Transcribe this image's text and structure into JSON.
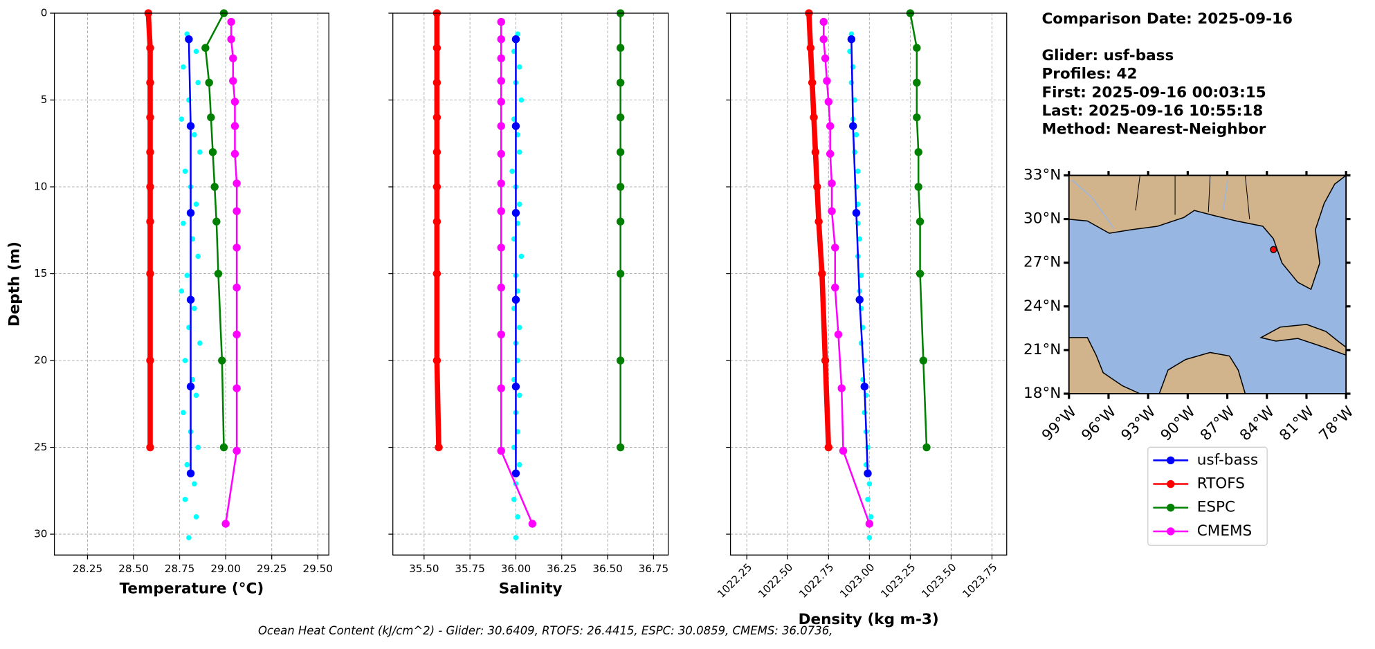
{
  "chart_data": [
    {
      "type": "profile",
      "xlabel": "Temperature (°C)",
      "ylabel": "Depth (m)",
      "xlim": [
        28.07,
        29.56
      ],
      "ylim": [
        31.2,
        0
      ],
      "xticks": [
        28.25,
        {
          "value": 28.5,
          "label": "28.50"
        },
        28.75,
        {
          "value": 29,
          "label": "29.00"
        },
        29.25,
        {
          "value": 29.5,
          "label": "29.50"
        }
      ],
      "yticks": [
        0,
        5,
        10,
        15,
        20,
        25,
        30
      ],
      "grid": true,
      "profile_points": {
        "color": "#00ffff",
        "depths": [
          1.2,
          2.2,
          3.1,
          4.0,
          5.0,
          6.1,
          7.0,
          8.0,
          9.1,
          10.0,
          11.0,
          12.1,
          13.0,
          14.0,
          15.1,
          16.0,
          17.0,
          18.1,
          19.0,
          20.0,
          21.1,
          22.0,
          23.0,
          24.1,
          25.0,
          26.0,
          27.1,
          28.0,
          29.0,
          30.2
        ],
        "values": [
          28.79,
          28.84,
          28.77,
          28.85,
          28.8,
          28.76,
          28.83,
          28.86,
          28.78,
          28.81,
          28.84,
          28.77,
          28.82,
          28.85,
          28.79,
          28.76,
          28.83,
          28.8,
          28.86,
          28.78,
          28.82,
          28.84,
          28.77,
          28.81,
          28.85,
          28.79,
          28.83,
          28.78,
          28.84,
          28.8
        ]
      },
      "series": [
        {
          "name": "usf-bass",
          "color": "#0000ff",
          "depths": [
            1.5,
            6.5,
            11.5,
            16.5,
            21.5,
            26.5
          ],
          "values": [
            28.8,
            28.81,
            28.81,
            28.81,
            28.81,
            28.81
          ]
        },
        {
          "name": "RTOFS",
          "color": "#ff0000",
          "depths": [
            0,
            2,
            4,
            6,
            8,
            10,
            12,
            15,
            20,
            25
          ],
          "values": [
            28.58,
            28.59,
            28.59,
            28.59,
            28.59,
            28.59,
            28.59,
            28.59,
            28.59,
            28.59
          ]
        },
        {
          "name": "ESPC",
          "color": "#008000",
          "depths": [
            0,
            2,
            4,
            6,
            8,
            10,
            12,
            15,
            20,
            25
          ],
          "values": [
            28.99,
            28.89,
            28.91,
            28.92,
            28.93,
            28.94,
            28.95,
            28.96,
            28.98,
            28.99
          ]
        },
        {
          "name": "CMEMS",
          "color": "#ff00ff",
          "depths": [
            0.5,
            1.5,
            2.6,
            3.9,
            5.1,
            6.5,
            8.1,
            9.8,
            11.4,
            13.5,
            15.8,
            18.5,
            21.6,
            25.2,
            29.4
          ],
          "values": [
            29.03,
            29.03,
            29.04,
            29.04,
            29.05,
            29.05,
            29.05,
            29.06,
            29.06,
            29.06,
            29.06,
            29.06,
            29.06,
            29.06,
            29.0
          ]
        }
      ]
    },
    {
      "type": "profile",
      "xlabel": "Salinity",
      "xlim": [
        35.33,
        36.83
      ],
      "ylim": [
        31.2,
        0
      ],
      "xticks": [
        {
          "value": 35.5,
          "label": "35.50"
        },
        35.75,
        {
          "value": 36,
          "label": "36.00"
        },
        36.25,
        {
          "value": 36.5,
          "label": "36.50"
        },
        36.75
      ],
      "yticks": [
        0,
        5,
        10,
        15,
        20,
        25,
        30
      ],
      "grid": true,
      "profile_points": {
        "color": "#00ffff",
        "depths": [
          1.2,
          2.2,
          3.1,
          4.0,
          5.0,
          6.1,
          7.0,
          8.0,
          9.1,
          10.0,
          11.0,
          12.1,
          13.0,
          14.0,
          15.1,
          16.0,
          17.0,
          18.1,
          19.0,
          20.0,
          21.1,
          22.0,
          23.0,
          24.1,
          25.0,
          26.0,
          27.1,
          28.0,
          29.0,
          30.2
        ],
        "values": [
          36.01,
          35.99,
          36.02,
          36.0,
          36.03,
          35.99,
          36.01,
          36.02,
          35.98,
          36.0,
          36.02,
          36.01,
          35.99,
          36.03,
          36.0,
          36.01,
          35.99,
          36.02,
          36.0,
          36.01,
          35.99,
          36.02,
          36.0,
          36.01,
          35.99,
          36.02,
          36.0,
          35.99,
          36.01,
          36.0
        ]
      },
      "series": [
        {
          "name": "usf-bass",
          "color": "#0000ff",
          "depths": [
            1.5,
            6.5,
            11.5,
            16.5,
            21.5,
            26.5
          ],
          "values": [
            36.0,
            36.0,
            36.0,
            36.0,
            36.0,
            36.0
          ]
        },
        {
          "name": "RTOFS",
          "color": "#ff0000",
          "depths": [
            0,
            2,
            4,
            6,
            8,
            10,
            12,
            15,
            20,
            25
          ],
          "values": [
            35.57,
            35.57,
            35.57,
            35.57,
            35.57,
            35.57,
            35.57,
            35.57,
            35.57,
            35.58
          ]
        },
        {
          "name": "ESPC",
          "color": "#008000",
          "depths": [
            0,
            2,
            4,
            6,
            8,
            10,
            12,
            15,
            20,
            25
          ],
          "values": [
            36.57,
            36.57,
            36.57,
            36.57,
            36.57,
            36.57,
            36.57,
            36.57,
            36.57,
            36.57
          ]
        },
        {
          "name": "CMEMS",
          "color": "#ff00ff",
          "depths": [
            0.5,
            1.5,
            2.6,
            3.9,
            5.1,
            6.5,
            8.1,
            9.8,
            11.4,
            13.5,
            15.8,
            18.5,
            21.6,
            25.2,
            29.4
          ],
          "values": [
            35.92,
            35.92,
            35.92,
            35.92,
            35.92,
            35.92,
            35.92,
            35.92,
            35.92,
            35.92,
            35.92,
            35.92,
            35.92,
            35.92,
            36.09
          ]
        }
      ]
    },
    {
      "type": "profile",
      "xlabel": "Density (kg m-3)",
      "xlim": [
        1022.15,
        1023.84
      ],
      "ylim": [
        31.2,
        0
      ],
      "xticks": [
        1022.25,
        {
          "value": 1022.5,
          "label": "1022.50"
        },
        1022.75,
        {
          "value": 1023,
          "label": "1023.00"
        },
        1023.25,
        {
          "value": 1023.5,
          "label": "1023.50"
        },
        1023.75
      ],
      "yticks": [
        0,
        5,
        10,
        15,
        20,
        25,
        30
      ],
      "grid": true,
      "rotate_xticks": true,
      "profile_points": {
        "color": "#00ffff",
        "depths": [
          1.2,
          2.2,
          3.1,
          4.0,
          5.0,
          6.1,
          7.0,
          8.0,
          9.1,
          10.0,
          11.0,
          12.1,
          13.0,
          14.0,
          15.1,
          16.0,
          17.0,
          18.1,
          19.0,
          20.0,
          21.1,
          22.0,
          23.0,
          24.1,
          25.0,
          26.0,
          27.1,
          28.0,
          29.0,
          30.2
        ],
        "values": [
          1022.89,
          1022.88,
          1022.9,
          1022.89,
          1022.91,
          1022.9,
          1022.92,
          1022.91,
          1022.93,
          1022.92,
          1022.93,
          1022.93,
          1022.94,
          1022.93,
          1022.95,
          1022.94,
          1022.95,
          1022.96,
          1022.95,
          1022.97,
          1022.96,
          1022.98,
          1022.97,
          1022.98,
          1022.99,
          1022.98,
          1023.0,
          1022.99,
          1023.01,
          1023.0
        ]
      },
      "series": [
        {
          "name": "usf-bass",
          "color": "#0000ff",
          "depths": [
            1.5,
            6.5,
            11.5,
            16.5,
            21.5,
            26.5
          ],
          "values": [
            1022.89,
            1022.9,
            1022.92,
            1022.94,
            1022.97,
            1022.99
          ]
        },
        {
          "name": "RTOFS",
          "color": "#ff0000",
          "depths": [
            0,
            2,
            4,
            6,
            8,
            10,
            12,
            15,
            20,
            25
          ],
          "values": [
            1022.63,
            1022.64,
            1022.65,
            1022.66,
            1022.67,
            1022.68,
            1022.69,
            1022.71,
            1022.73,
            1022.75
          ]
        },
        {
          "name": "ESPC",
          "color": "#008000",
          "depths": [
            0,
            2,
            4,
            6,
            8,
            10,
            12,
            15,
            20,
            25
          ],
          "values": [
            1023.25,
            1023.29,
            1023.29,
            1023.29,
            1023.3,
            1023.3,
            1023.31,
            1023.31,
            1023.33,
            1023.35
          ]
        },
        {
          "name": "CMEMS",
          "color": "#ff00ff",
          "depths": [
            0.5,
            1.5,
            2.6,
            3.9,
            5.1,
            6.5,
            8.1,
            9.8,
            11.4,
            13.5,
            15.8,
            18.5,
            21.6,
            25.2,
            29.4
          ],
          "values": [
            1022.72,
            1022.72,
            1022.73,
            1022.74,
            1022.75,
            1022.76,
            1022.76,
            1022.77,
            1022.77,
            1022.79,
            1022.79,
            1022.81,
            1022.83,
            1022.84,
            1023.0
          ]
        }
      ]
    },
    {
      "type": "map",
      "xlim": [
        -99,
        -78
      ],
      "ylim": [
        18,
        33
      ],
      "xticks": [
        {
          "value": -99,
          "label": "99°W"
        },
        {
          "value": -96,
          "label": "96°W"
        },
        {
          "value": -93,
          "label": "93°W"
        },
        {
          "value": -90,
          "label": "90°W"
        },
        {
          "value": -87,
          "label": "87°W"
        },
        {
          "value": -84,
          "label": "84°W"
        },
        {
          "value": -81,
          "label": "81°W"
        },
        {
          "value": -78,
          "label": "78°W"
        }
      ],
      "yticks": [
        {
          "value": 18,
          "label": "18°N"
        },
        {
          "value": 21,
          "label": "21°N"
        },
        {
          "value": 24,
          "label": "24°N"
        },
        {
          "value": 27,
          "label": "27°N"
        },
        {
          "value": 30,
          "label": "30°N"
        },
        {
          "value": 33,
          "label": "33°N"
        }
      ],
      "points": {
        "x": [
          -83.5
        ],
        "y": [
          27.9
        ],
        "color": "#ff0000"
      }
    }
  ],
  "info_box": {
    "title": "Comparison Date: 2025-09-16",
    "lines": [
      "Glider: usf-bass",
      "Profiles: 42",
      "First: 2025-09-16 00:03:15",
      "Last: 2025-09-16 10:55:18",
      "Method: Nearest-Neighbor"
    ]
  },
  "footer": "Ocean Heat Content (kJ/cm^2) - Glider: 30.6409,  RTOFS: 26.4415,  ESPC: 30.0859,  CMEMS: 36.0736,"
}
